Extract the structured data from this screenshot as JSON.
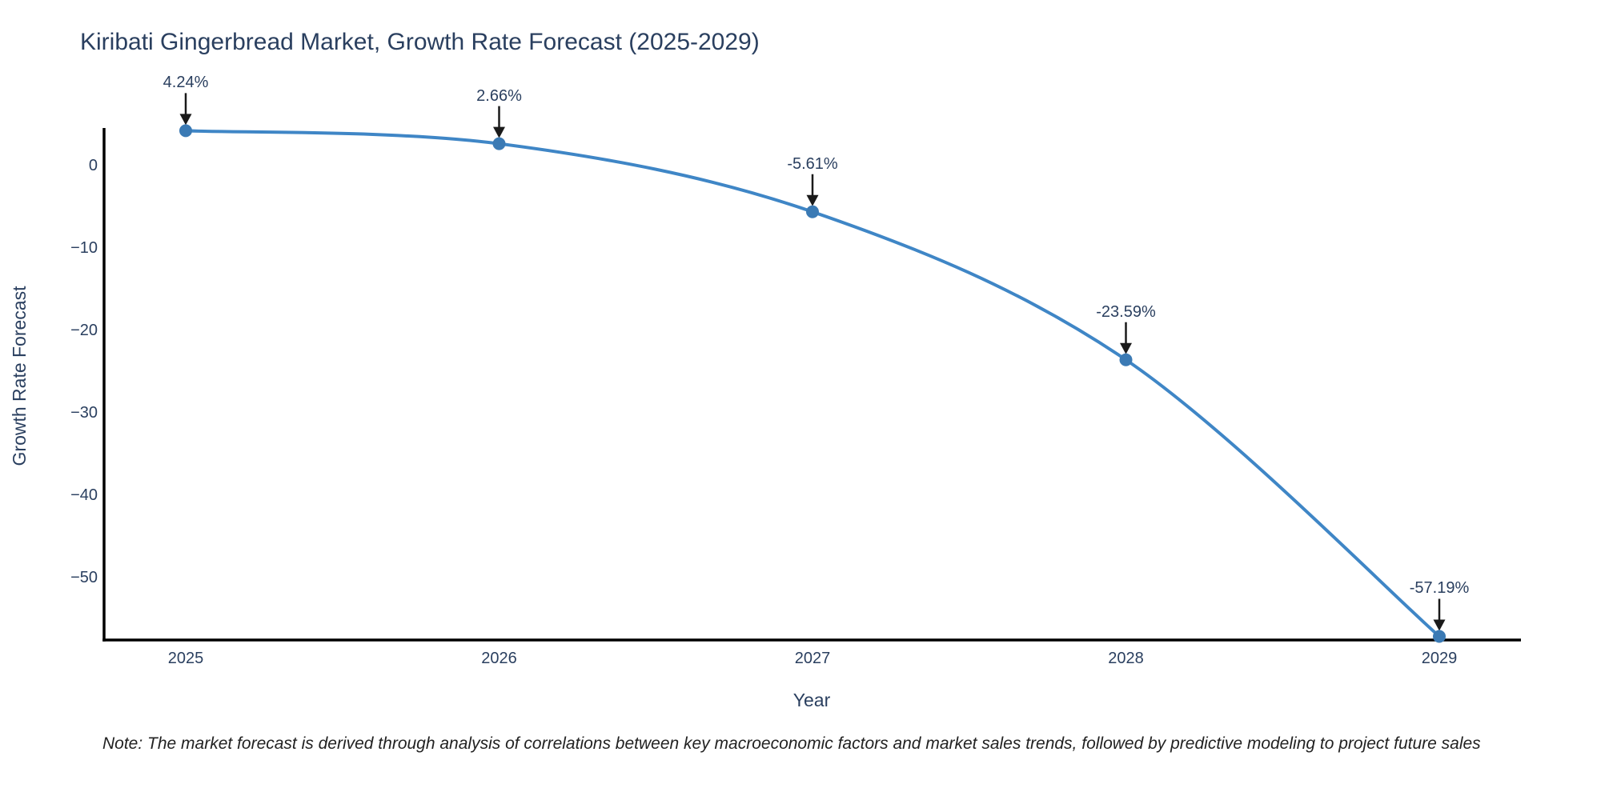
{
  "title": "Kiribati Gingerbread Market, Growth Rate Forecast (2025-2029)",
  "note": "Note: The market forecast is derived through analysis of correlations between key macroeconomic factors and market sales trends, followed by predictive modeling to project future sales",
  "chart_data": {
    "type": "line",
    "title": "Kiribati Gingerbread Market, Growth Rate Forecast (2025-2029)",
    "xlabel": "Year",
    "ylabel": "Growth Rate Forecast",
    "categories": [
      "2025",
      "2026",
      "2027",
      "2028",
      "2029"
    ],
    "series": [
      {
        "name": "Growth Rate Forecast",
        "values": [
          4.24,
          2.66,
          -5.61,
          -23.59,
          -57.19
        ]
      }
    ],
    "point_labels": [
      "4.24%",
      "2.66%",
      "-5.61%",
      "-23.59%",
      "-57.19%"
    ],
    "yticks": [
      "0",
      "−10",
      "−20",
      "−30",
      "−40",
      "−50"
    ],
    "ytick_values": [
      0,
      -10,
      -20,
      -30,
      -40,
      -50
    ],
    "ylim": [
      -57.7,
      4.6
    ],
    "grid": false,
    "legend": false,
    "line_shape": "spline",
    "colors": {
      "line": "#3f86c6",
      "marker": "#3b7ab4",
      "axis": "#000000",
      "text": "#2a3f5f",
      "arrow": "#1a1a1a"
    }
  }
}
